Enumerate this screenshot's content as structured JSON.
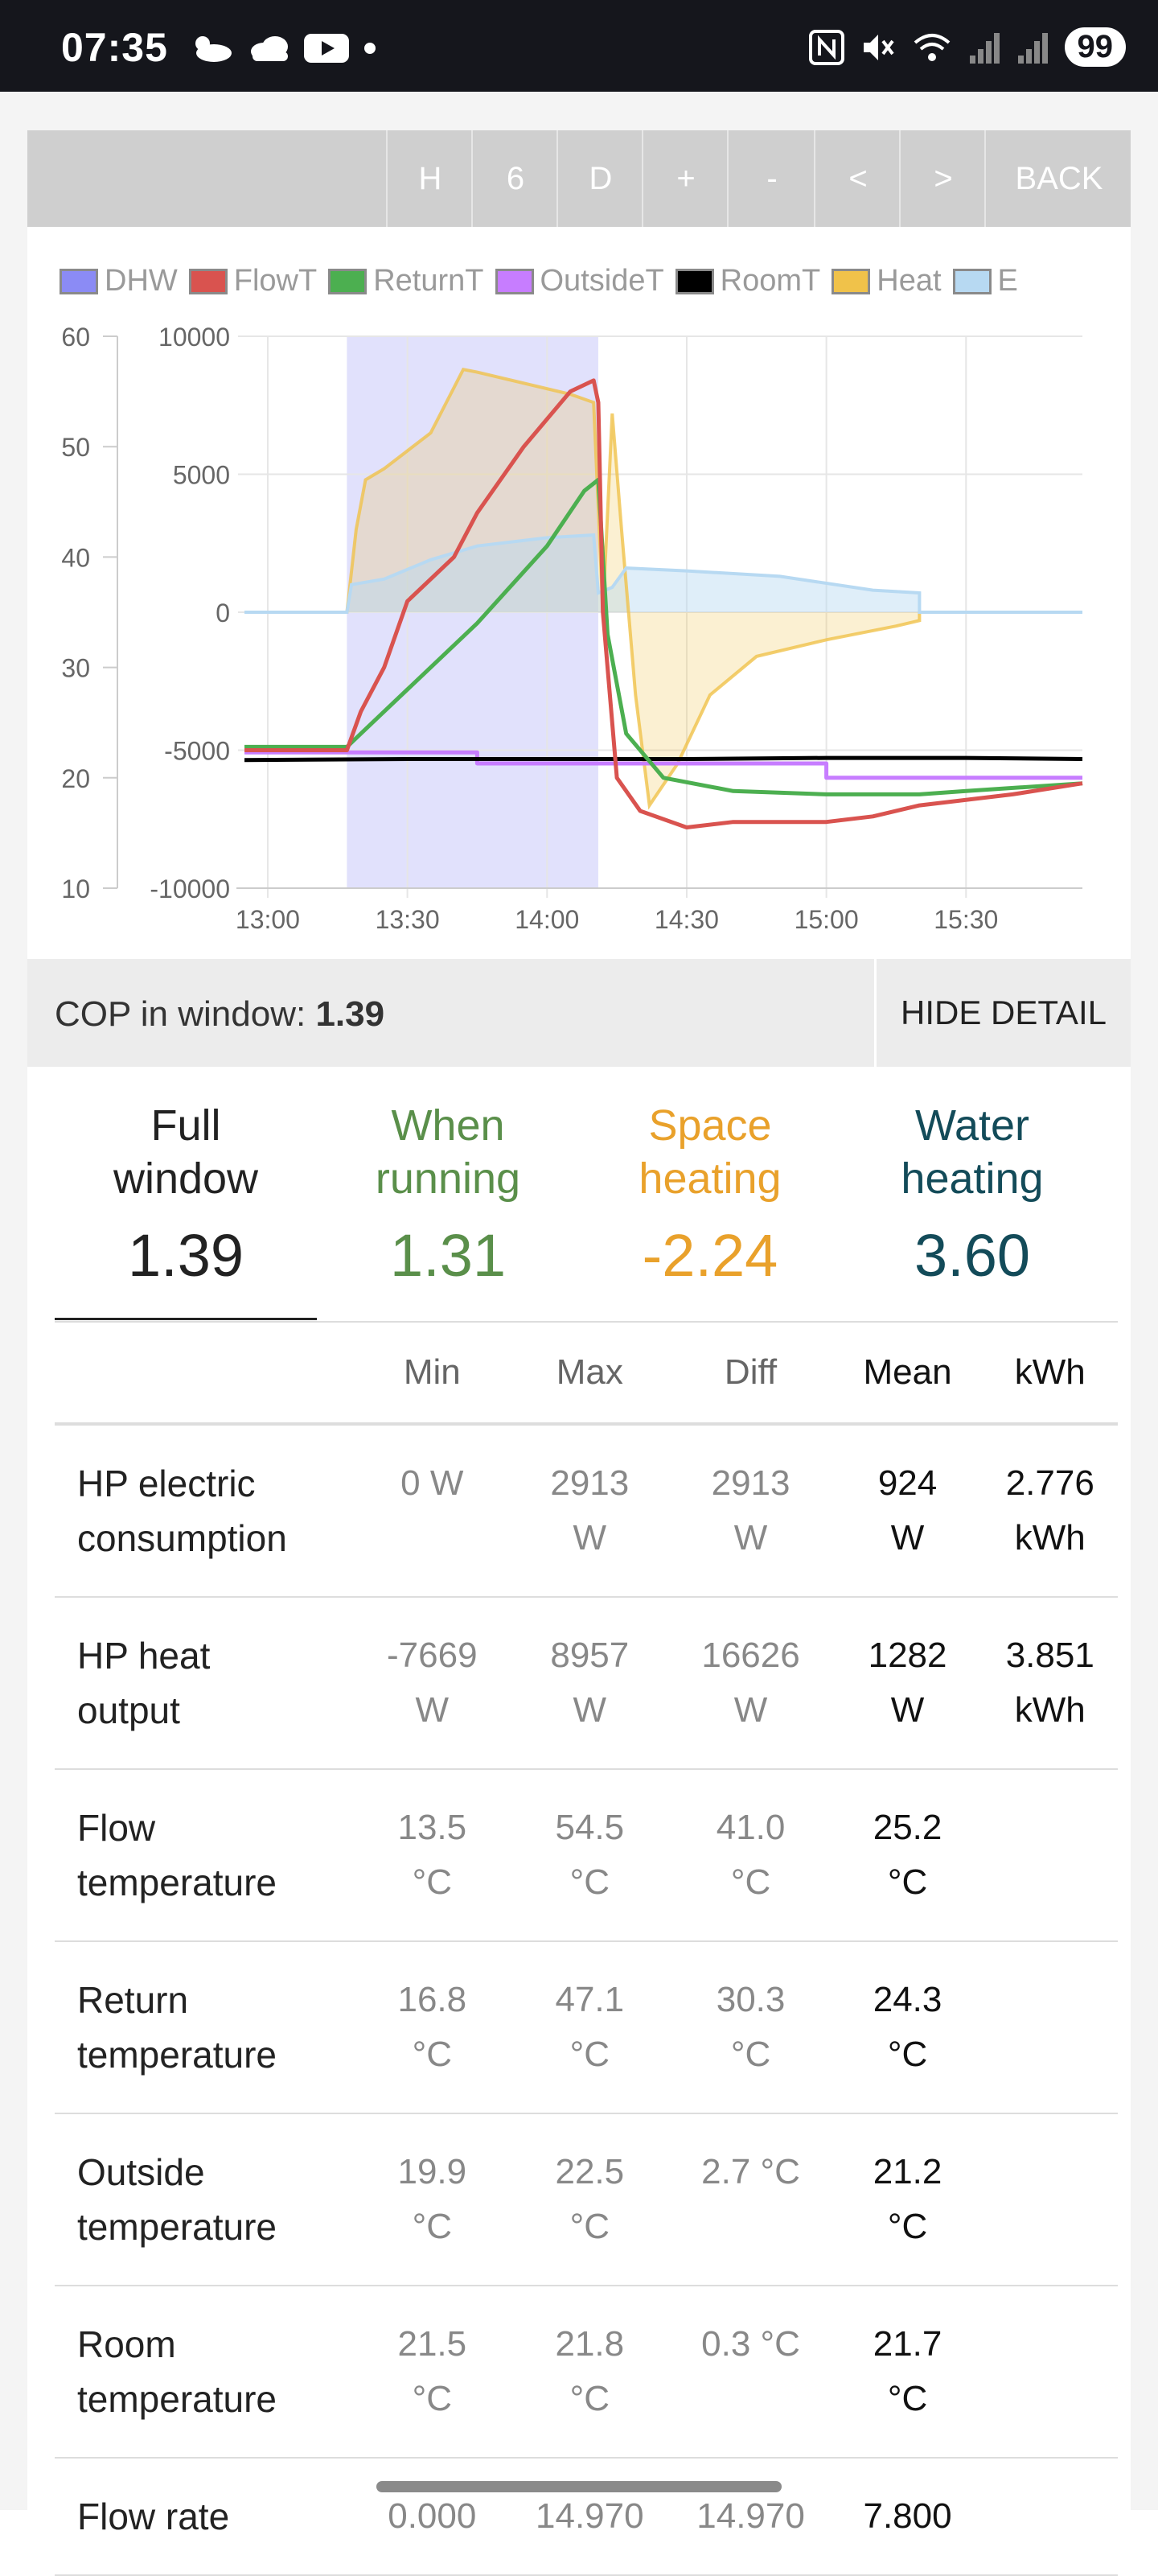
{
  "status_bar": {
    "time": "07:35",
    "battery": "99",
    "left_icons": [
      "weather-icon",
      "cloud-icon",
      "youtube-icon",
      "dot-icon"
    ],
    "right_icons": [
      "nfc-icon",
      "mute-icon",
      "wifi-icon",
      "signal-icon",
      "signal-icon"
    ]
  },
  "toolbar": {
    "buttons": [
      "H",
      "6",
      "D",
      "+",
      "-",
      "<",
      ">",
      "BACK"
    ]
  },
  "legend": [
    {
      "label": "DHW",
      "color": "#8b8bf5"
    },
    {
      "label": "FlowT",
      "color": "#d9534f"
    },
    {
      "label": "ReturnT",
      "color": "#4caf50"
    },
    {
      "label": "OutsideT",
      "color": "#c77dff"
    },
    {
      "label": "RoomT",
      "color": "#000000"
    },
    {
      "label": "Heat",
      "color": "#f0c24a"
    },
    {
      "label": "E",
      "color": "#b7d9f2"
    }
  ],
  "chart_data": {
    "type": "line",
    "x_ticks": [
      "13:00",
      "13:30",
      "14:00",
      "14:30",
      "15:00",
      "15:30"
    ],
    "y_left_ticks": [
      "60",
      "50",
      "40",
      "30",
      "20",
      "10"
    ],
    "y_right_ticks": [
      "10000",
      "5000",
      "0",
      "-5000",
      "-10000"
    ],
    "y_left_range": [
      10,
      60
    ],
    "y_right_range": [
      -10000,
      10000
    ],
    "x_range_minutes": [
      "12:55",
      "15:55"
    ],
    "dhw_band": [
      "13:17",
      "14:11"
    ],
    "series": [
      {
        "name": "FlowT",
        "axis": "left",
        "color": "#d9534f",
        "points": [
          [
            "12:55",
            22.5
          ],
          [
            "13:17",
            22.5
          ],
          [
            "13:20",
            26
          ],
          [
            "13:25",
            30
          ],
          [
            "13:30",
            36
          ],
          [
            "13:40",
            40
          ],
          [
            "13:45",
            44
          ],
          [
            "13:55",
            50
          ],
          [
            "14:05",
            55
          ],
          [
            "14:10",
            56
          ],
          [
            "14:11",
            54
          ],
          [
            "14:12",
            35
          ],
          [
            "14:15",
            20
          ],
          [
            "14:20",
            17
          ],
          [
            "14:30",
            15.5
          ],
          [
            "14:40",
            16
          ],
          [
            "14:50",
            16
          ],
          [
            "15:00",
            16
          ],
          [
            "15:10",
            16.5
          ],
          [
            "15:20",
            17.5
          ],
          [
            "15:40",
            18.5
          ],
          [
            "15:55",
            19.5
          ]
        ]
      },
      {
        "name": "ReturnT",
        "axis": "left",
        "color": "#4caf50",
        "points": [
          [
            "12:55",
            22.8
          ],
          [
            "13:17",
            22.8
          ],
          [
            "13:20",
            24
          ],
          [
            "13:30",
            28
          ],
          [
            "13:45",
            34
          ],
          [
            "14:00",
            41
          ],
          [
            "14:08",
            46
          ],
          [
            "14:11",
            47
          ],
          [
            "14:13",
            33
          ],
          [
            "14:17",
            24
          ],
          [
            "14:25",
            20
          ],
          [
            "14:40",
            18.8
          ],
          [
            "15:00",
            18.5
          ],
          [
            "15:20",
            18.5
          ],
          [
            "15:30",
            18.8
          ],
          [
            "15:55",
            19.5
          ]
        ]
      },
      {
        "name": "OutsideT",
        "axis": "left",
        "color": "#c77dff",
        "points": [
          [
            "12:55",
            22.3
          ],
          [
            "13:45",
            22.3
          ],
          [
            "13:45",
            21.3
          ],
          [
            "15:00",
            21.3
          ],
          [
            "15:00",
            20
          ],
          [
            "15:55",
            20
          ]
        ]
      },
      {
        "name": "RoomT",
        "axis": "left",
        "color": "#000000",
        "points": [
          [
            "12:55",
            21.6
          ],
          [
            "13:30",
            21.7
          ],
          [
            "14:00",
            21.7
          ],
          [
            "14:30",
            21.7
          ],
          [
            "15:00",
            21.8
          ],
          [
            "15:30",
            21.8
          ],
          [
            "15:55",
            21.7
          ]
        ]
      },
      {
        "name": "Heat",
        "axis": "right",
        "color": "#f0c24a",
        "points": [
          [
            "12:55",
            0
          ],
          [
            "13:17",
            0
          ],
          [
            "13:19",
            3000
          ],
          [
            "13:21",
            4800
          ],
          [
            "13:25",
            5200
          ],
          [
            "13:35",
            6500
          ],
          [
            "13:42",
            8800
          ],
          [
            "13:45",
            8700
          ],
          [
            "14:05",
            7900
          ],
          [
            "14:10",
            7600
          ],
          [
            "14:12",
            0
          ],
          [
            "14:14",
            7200
          ],
          [
            "14:16",
            3000
          ],
          [
            "14:19",
            -3000
          ],
          [
            "14:22",
            -7000
          ],
          [
            "14:28",
            -5500
          ],
          [
            "14:35",
            -3000
          ],
          [
            "14:45",
            -1600
          ],
          [
            "15:00",
            -1000
          ],
          [
            "15:15",
            -500
          ],
          [
            "15:20",
            -300
          ],
          [
            "15:20",
            0
          ],
          [
            "15:55",
            0
          ]
        ]
      },
      {
        "name": "E",
        "axis": "right",
        "color": "#b7d9f2",
        "points": [
          [
            "12:55",
            0
          ],
          [
            "13:17",
            0
          ],
          [
            "13:18",
            1000
          ],
          [
            "13:25",
            1200
          ],
          [
            "13:35",
            1900
          ],
          [
            "13:45",
            2400
          ],
          [
            "14:00",
            2700
          ],
          [
            "14:10",
            2800
          ],
          [
            "14:11",
            700
          ],
          [
            "14:14",
            900
          ],
          [
            "14:17",
            1600
          ],
          [
            "14:30",
            1500
          ],
          [
            "14:50",
            1300
          ],
          [
            "15:10",
            800
          ],
          [
            "15:20",
            700
          ],
          [
            "15:20",
            0
          ],
          [
            "15:55",
            0
          ]
        ]
      }
    ]
  },
  "cop_bar": {
    "label": "COP in window:",
    "value": "1.39",
    "hide_label": "HIDE DETAIL"
  },
  "cop_columns": [
    {
      "label_l1": "Full",
      "label_l2": "window",
      "value": "1.39",
      "color": "#222222"
    },
    {
      "label_l1": "When",
      "label_l2": "running",
      "value": "1.31",
      "color": "#5a8f4a"
    },
    {
      "label_l1": "Space",
      "label_l2": "heating",
      "value": "-2.24",
      "color": "#e9a12b"
    },
    {
      "label_l1": "Water",
      "label_l2": "heating",
      "value": "3.60",
      "color": "#134b59"
    }
  ],
  "table": {
    "headers": [
      "",
      "Min",
      "Max",
      "Diff",
      "Mean",
      "kWh"
    ],
    "rows": [
      {
        "label": [
          "HP electric",
          "consumption"
        ],
        "min": [
          "0 W",
          ""
        ],
        "max": [
          "2913",
          "W"
        ],
        "diff": [
          "2913",
          "W"
        ],
        "mean": [
          "924",
          "W"
        ],
        "kwh": [
          "2.776",
          "kWh"
        ]
      },
      {
        "label": [
          "HP heat",
          "output"
        ],
        "min": [
          "-7669",
          "W"
        ],
        "max": [
          "8957",
          "W"
        ],
        "diff": [
          "16626",
          "W"
        ],
        "mean": [
          "1282",
          "W"
        ],
        "kwh": [
          "3.851",
          "kWh"
        ]
      },
      {
        "label": [
          "Flow",
          "temperature"
        ],
        "min": [
          "13.5",
          "°C"
        ],
        "max": [
          "54.5",
          "°C"
        ],
        "diff": [
          "41.0",
          "°C"
        ],
        "mean": [
          "25.2",
          "°C"
        ],
        "kwh": [
          "",
          ""
        ]
      },
      {
        "label": [
          "Return",
          "temperature"
        ],
        "min": [
          "16.8",
          "°C"
        ],
        "max": [
          "47.1",
          "°C"
        ],
        "diff": [
          "30.3",
          "°C"
        ],
        "mean": [
          "24.3",
          "°C"
        ],
        "kwh": [
          "",
          ""
        ]
      },
      {
        "label": [
          "Outside",
          "temperature"
        ],
        "min": [
          "19.9",
          "°C"
        ],
        "max": [
          "22.5",
          "°C"
        ],
        "diff": [
          "2.7 °C",
          ""
        ],
        "mean": [
          "21.2",
          "°C"
        ],
        "kwh": [
          "",
          ""
        ]
      },
      {
        "label": [
          "Room",
          "temperature"
        ],
        "min": [
          "21.5",
          "°C"
        ],
        "max": [
          "21.8",
          "°C"
        ],
        "diff": [
          "0.3 °C",
          ""
        ],
        "mean": [
          "21.7",
          "°C"
        ],
        "kwh": [
          "",
          ""
        ]
      },
      {
        "label": [
          "Flow rate",
          ""
        ],
        "min": [
          "0.000",
          ""
        ],
        "max": [
          "14.970",
          ""
        ],
        "diff": [
          "14.970",
          ""
        ],
        "mean": [
          "7.800",
          ""
        ],
        "kwh": [
          "",
          ""
        ]
      }
    ]
  }
}
